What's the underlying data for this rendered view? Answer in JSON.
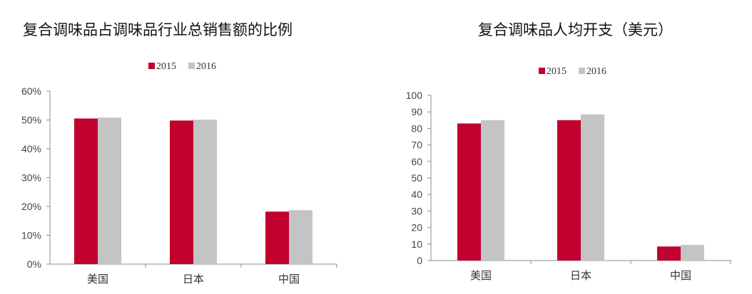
{
  "chart_data": [
    {
      "type": "bar",
      "title": "复合调味品占调味品行业总销售额的比例",
      "categories": [
        "美国",
        "日本",
        "中国"
      ],
      "series": [
        {
          "name": "2015",
          "values": [
            50.5,
            49.8,
            18.2
          ]
        },
        {
          "name": "2016",
          "values": [
            50.8,
            50.1,
            18.7
          ]
        }
      ],
      "ylim": [
        0,
        60
      ],
      "yticks": [
        0,
        10,
        20,
        30,
        40,
        50,
        60
      ],
      "ytick_labels": [
        "0%",
        "10%",
        "20%",
        "30%",
        "40%",
        "50%",
        "60%"
      ],
      "xlabel": "",
      "ylabel": "",
      "grid": false,
      "legend_position": "top",
      "colors": [
        "#C0002F",
        "#C4C4C4"
      ]
    },
    {
      "type": "bar",
      "title": "复合调味品人均开支（美元）",
      "categories": [
        "美国",
        "日本",
        "中国"
      ],
      "series": [
        {
          "name": "2015",
          "values": [
            83,
            85,
            8.5
          ]
        },
        {
          "name": "2016",
          "values": [
            85,
            88.5,
            9.5
          ]
        }
      ],
      "ylim": [
        0,
        100
      ],
      "yticks": [
        0,
        10,
        20,
        30,
        40,
        50,
        60,
        70,
        80,
        90,
        100
      ],
      "ytick_labels": [
        "0",
        "10",
        "20",
        "30",
        "40",
        "50",
        "60",
        "70",
        "80",
        "90",
        "100"
      ],
      "xlabel": "",
      "ylabel": "",
      "grid": false,
      "legend_position": "top",
      "colors": [
        "#C0002F",
        "#C4C4C4"
      ]
    }
  ]
}
